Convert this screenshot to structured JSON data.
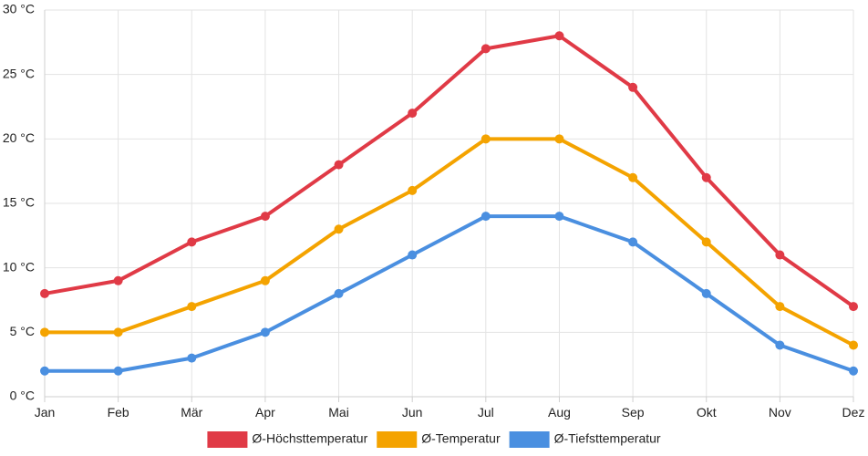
{
  "chart_data": {
    "type": "line",
    "title": "",
    "xlabel": "",
    "ylabel": "",
    "categories": [
      "Jan",
      "Feb",
      "Mär",
      "Apr",
      "Mai",
      "Jun",
      "Jul",
      "Aug",
      "Sep",
      "Okt",
      "Nov",
      "Dez"
    ],
    "y_ticks": [
      0,
      5,
      10,
      15,
      20,
      25,
      30
    ],
    "y_unit": " °C",
    "ylim": [
      0,
      30
    ],
    "grid": true,
    "legend_position": "bottom",
    "series": [
      {
        "name": "Ø-Höchsttemperatur",
        "color": "#e03a46",
        "values": [
          8,
          9,
          12,
          14,
          18,
          22,
          27,
          28,
          24,
          17,
          11,
          7
        ]
      },
      {
        "name": "Ø-Temperatur",
        "color": "#f4a300",
        "values": [
          5,
          5,
          7,
          9,
          13,
          16,
          20,
          20,
          17,
          12,
          7,
          4
        ]
      },
      {
        "name": "Ø-Tiefsttemperatur",
        "color": "#4a8fe0",
        "values": [
          2,
          2,
          3,
          5,
          8,
          11,
          14,
          14,
          12,
          8,
          4,
          2
        ]
      }
    ]
  }
}
